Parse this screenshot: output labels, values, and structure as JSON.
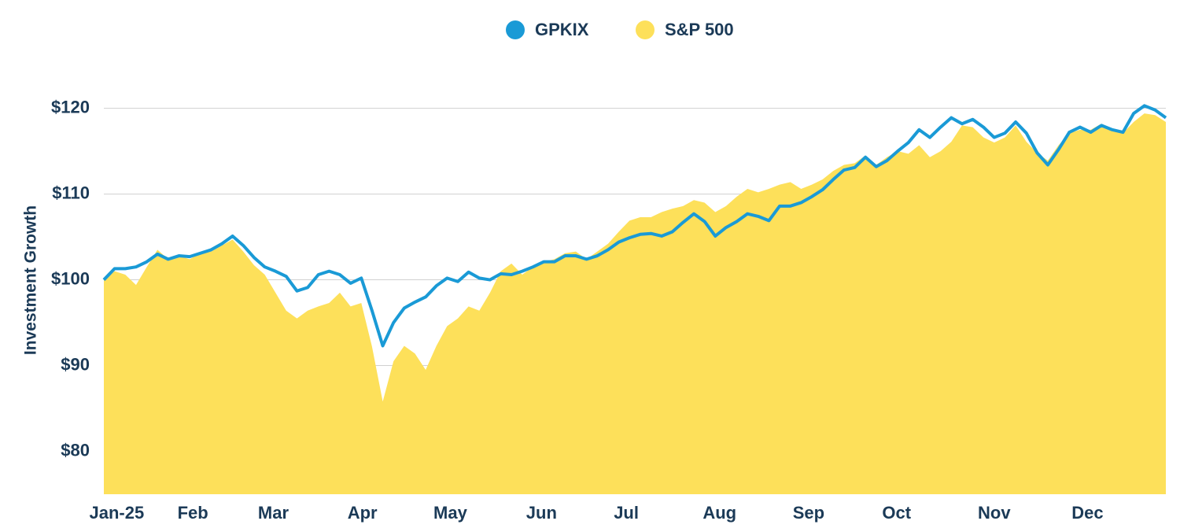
{
  "chart_data": {
    "type": "line",
    "y_label": "Investment Growth",
    "xlim": [
      0,
      99
    ],
    "xticks": [
      {
        "value": 1.2,
        "label": "Jan-25"
      },
      {
        "value": 8.3,
        "label": "Feb"
      },
      {
        "value": 15.8,
        "label": "Mar"
      },
      {
        "value": 24.1,
        "label": "Apr"
      },
      {
        "value": 32.3,
        "label": "May"
      },
      {
        "value": 40.8,
        "label": "Jun"
      },
      {
        "value": 48.7,
        "label": "Jul"
      },
      {
        "value": 57.4,
        "label": "Aug"
      },
      {
        "value": 65.7,
        "label": "Sep"
      },
      {
        "value": 73.9,
        "label": "Oct"
      },
      {
        "value": 83.0,
        "label": "Nov"
      },
      {
        "value": 91.7,
        "label": "Dec"
      }
    ],
    "ylim": [
      75,
      124
    ],
    "yticks": [
      {
        "value": 80,
        "label": "$80"
      },
      {
        "value": 90,
        "label": "$90"
      },
      {
        "value": 100,
        "label": "$100"
      },
      {
        "value": 110,
        "label": "$110"
      },
      {
        "value": 120,
        "label": "$120"
      }
    ],
    "grid": true,
    "legend": "top",
    "series": [
      {
        "name": "GPKIX",
        "color": "#1a9ad6",
        "style": "line",
        "values": [
          100,
          101.3,
          101.3,
          101.5,
          102.1,
          103.0,
          102.4,
          102.8,
          102.7,
          103.1,
          103.5,
          104.2,
          105.1,
          104.0,
          102.6,
          101.5,
          101.0,
          100.4,
          98.7,
          99.1,
          100.6,
          101.0,
          100.6,
          99.6,
          100.2,
          96.4,
          92.3,
          95.0,
          96.7,
          97.4,
          98.0,
          99.3,
          100.2,
          99.8,
          100.9,
          100.2,
          100.0,
          100.7,
          100.6,
          101.0,
          101.5,
          102.1,
          102.1,
          102.8,
          102.8,
          102.4,
          102.8,
          103.5,
          104.4,
          104.9,
          105.3,
          105.4,
          105.1,
          105.6,
          106.7,
          107.7,
          106.8,
          105.1,
          106.1,
          106.8,
          107.7,
          107.4,
          106.9,
          108.6,
          108.6,
          109.0,
          109.7,
          110.5,
          111.7,
          112.8,
          113.1,
          114.3,
          113.2,
          113.9,
          115.0,
          116.0,
          117.5,
          116.6,
          117.8,
          118.9,
          118.2,
          118.7,
          117.8,
          116.6,
          117.1,
          118.4,
          117.1,
          114.8,
          113.4,
          115.2,
          117.2,
          117.8,
          117.2,
          118.0,
          117.5,
          117.2,
          119.4,
          120.3,
          119.8,
          118.9
        ]
      },
      {
        "name": "S&P 500",
        "color": "#fde05a",
        "style": "area",
        "values": [
          100,
          101.0,
          100.6,
          99.4,
          101.5,
          103.5,
          102.4,
          102.8,
          102.4,
          103.1,
          103.3,
          104.0,
          104.7,
          103.3,
          101.7,
          100.6,
          98.5,
          96.4,
          95.5,
          96.4,
          96.9,
          97.3,
          98.5,
          96.9,
          97.3,
          92.2,
          85.8,
          90.5,
          92.3,
          91.4,
          89.5,
          92.3,
          94.6,
          95.5,
          96.9,
          96.4,
          98.5,
          101.0,
          101.9,
          100.6,
          101.5,
          102.1,
          102.4,
          103.1,
          103.3,
          102.4,
          103.3,
          104.2,
          105.6,
          106.9,
          107.3,
          107.3,
          107.9,
          108.3,
          108.6,
          109.3,
          109.0,
          107.9,
          108.6,
          109.7,
          110.6,
          110.2,
          110.6,
          111.1,
          111.4,
          110.6,
          111.1,
          111.7,
          112.7,
          113.4,
          113.6,
          114.5,
          113.4,
          114.3,
          115.0,
          114.7,
          115.7,
          114.3,
          115.0,
          116.1,
          118.0,
          117.8,
          116.6,
          116.0,
          116.6,
          118.0,
          116.1,
          114.8,
          113.9,
          115.7,
          117.1,
          117.5,
          117.5,
          118.2,
          117.5,
          117.1,
          118.4,
          119.4,
          119.2,
          118.4
        ]
      }
    ]
  }
}
